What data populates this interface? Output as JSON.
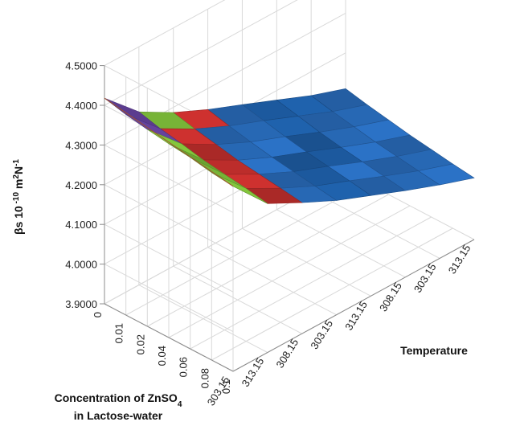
{
  "chart_data": {
    "type": "surface",
    "title": "",
    "zlabel_main": "βs 10",
    "zlabel_exp1": " -10",
    "zlabel_mid": " m",
    "zlabel_exp2": "2",
    "zlabel_mid2": "N",
    "zlabel_exp3": "-1",
    "zlim": [
      3.9,
      4.5
    ],
    "z_ticks": [
      "3.9000",
      "4.0000",
      "4.1000",
      "4.2000",
      "4.3000",
      "4.4000",
      "4.5000"
    ],
    "concentration_label_line1": "Concentration of ZnSO",
    "concentration_label_sub": "4",
    "concentration_label_line2": "in Lactose-water",
    "temperature_label": "Temperature",
    "concentrations": [
      "0",
      "0.01",
      "0.02",
      "0.04",
      "0.06",
      "0.08",
      "0.1"
    ],
    "temperatures": [
      "303.15",
      "313.15",
      "308.15",
      "303.15",
      "313.15",
      "308.15",
      "303.15",
      "313.15"
    ],
    "values": [
      [
        4.418,
        4.405,
        4.396,
        4.388,
        4.382,
        4.372,
        4.366
      ],
      [
        4.336,
        4.322,
        4.312,
        4.3,
        4.292,
        4.285,
        4.275
      ],
      [
        4.287,
        4.274,
        4.263,
        4.252,
        4.245,
        4.238,
        4.23
      ],
      [
        4.247,
        4.234,
        4.222,
        4.212,
        4.204,
        4.196,
        4.188
      ],
      [
        4.212,
        4.2,
        4.188,
        4.178,
        4.17,
        4.162,
        4.153
      ],
      [
        4.176,
        4.164,
        4.152,
        4.142,
        4.134,
        4.126,
        4.118
      ],
      [
        4.14,
        4.128,
        4.118,
        4.108,
        4.1,
        4.092,
        4.085
      ],
      [
        4.11,
        4.098,
        4.088,
        4.078,
        4.07,
        4.062,
        4.055
      ]
    ],
    "band_colors": [
      "#1f9ec8",
      "#6b47a8",
      "#7fc03a",
      "#c8302e",
      "#2a6fc0",
      "#1e5fa8",
      "#2a6fc0"
    ],
    "grid": true,
    "legend": "none"
  }
}
